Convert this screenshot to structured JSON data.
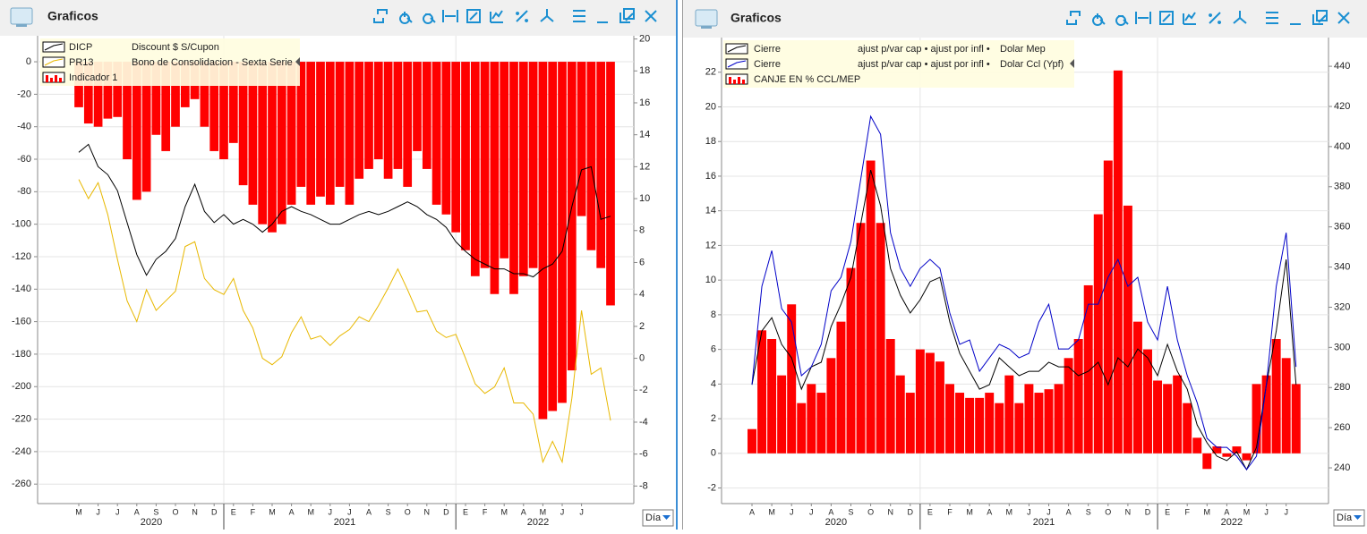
{
  "windows": [
    {
      "title": "Graficos",
      "period": "Día"
    },
    {
      "title": "Graficos",
      "period": "Día"
    }
  ],
  "chart_data": [
    {
      "type": "bar_line",
      "ylim": [
        -272,
        16
      ],
      "y2lim": [
        -9.1,
        20.2
      ],
      "yticks": [
        0,
        -20,
        -40,
        -60,
        -80,
        -100,
        -120,
        -140,
        -160,
        -180,
        -200,
        -220,
        -240,
        -260
      ],
      "y2ticks": [
        -8,
        -6,
        -4,
        -2,
        0,
        2,
        4,
        6,
        8,
        10,
        12,
        14,
        16,
        18,
        20
      ],
      "grid": true,
      "categories": [
        "M",
        null,
        "J",
        null,
        "J",
        null,
        "A",
        null,
        "S",
        null,
        "O",
        null,
        "N",
        null,
        "D",
        null,
        "E",
        null,
        "F",
        null,
        "M",
        null,
        "A",
        null,
        "M",
        null,
        "J",
        null,
        "J",
        null,
        "A",
        null,
        "S",
        null,
        "O",
        null,
        "N",
        null,
        "D",
        null,
        "E",
        null,
        "F",
        null,
        "M",
        null,
        "A",
        null,
        "M",
        null,
        "J",
        null,
        "J",
        null,
        null,
        null
      ],
      "years": [
        "2020",
        "2021",
        "2022"
      ],
      "series": [
        {
          "name": "DICP",
          "description": "Discount $ S/Cupon",
          "type": "line",
          "axis": "y2",
          "color": "#000000",
          "values": [
            12.9,
            13.4,
            12.0,
            11.5,
            10.5,
            8.5,
            6.5,
            5.2,
            6.2,
            6.7,
            7.5,
            9.5,
            10.9,
            9.2,
            8.5,
            9.0,
            8.4,
            8.7,
            8.4,
            7.9,
            8.4,
            9.2,
            9.5,
            9.2,
            9.0,
            8.7,
            8.4,
            8.4,
            8.7,
            9.0,
            9.2,
            9.0,
            9.2,
            9.5,
            9.8,
            9.5,
            9.0,
            8.7,
            8.2,
            7.3,
            6.7,
            6.2,
            5.9,
            5.6,
            5.6,
            5.3,
            5.3,
            5.1,
            5.6,
            5.9,
            6.7,
            9.5,
            11.8,
            12.0,
            8.7,
            8.9
          ]
        },
        {
          "name": "PR13",
          "description": "Bono de Consolidacion - Sexta Serie",
          "type": "line",
          "axis": "y2",
          "color": "#e8b800",
          "values": [
            11.2,
            10.0,
            11.0,
            9.0,
            6.2,
            3.6,
            2.3,
            4.3,
            3.0,
            3.6,
            4.2,
            7.0,
            7.3,
            5.0,
            4.3,
            4.0,
            5.0,
            3.0,
            1.9,
            0.0,
            -0.4,
            0.1,
            1.6,
            2.6,
            1.2,
            1.4,
            0.8,
            1.4,
            1.8,
            2.6,
            2.3,
            3.3,
            4.4,
            5.6,
            4.3,
            2.9,
            3.0,
            1.7,
            1.3,
            1.5,
            0.0,
            -1.6,
            -2.2,
            -1.8,
            -0.6,
            -2.8,
            -2.8,
            -3.5,
            -6.5,
            -5.2,
            -6.5,
            -2.5,
            3.0,
            -1.0,
            -0.6,
            -3.9
          ]
        },
        {
          "name": "Indicador 1",
          "type": "bar",
          "color": "#ff0000",
          "values": [
            -28,
            -38,
            -40,
            -35,
            -34,
            -60,
            -85,
            -80,
            -45,
            -55,
            -40,
            -28,
            -23,
            -40,
            -55,
            -60,
            -50,
            -76,
            -88,
            -100,
            -105,
            -100,
            -88,
            -77,
            -88,
            -83,
            -88,
            -77,
            -88,
            -72,
            -66,
            -60,
            -72,
            -66,
            -77,
            -55,
            -66,
            -88,
            -94,
            -105,
            -116,
            -132,
            -127,
            -143,
            -121,
            -143,
            -132,
            -127,
            -220,
            -215,
            -210,
            -190,
            -95,
            -116,
            -127,
            -150
          ]
        }
      ]
    },
    {
      "type": "bar_line",
      "ylim": [
        -2.9,
        24.0
      ],
      "y2lim": [
        222.2,
        454.3
      ],
      "yticks": [
        -2,
        0,
        2,
        4,
        6,
        8,
        10,
        12,
        14,
        16,
        18,
        20,
        22
      ],
      "y2ticks": [
        240,
        260,
        280,
        300,
        320,
        340,
        360,
        380,
        400,
        420,
        440
      ],
      "grid": true,
      "categories": [
        "A",
        null,
        "M",
        null,
        "J",
        null,
        "J",
        null,
        "A",
        null,
        "S",
        null,
        "O",
        null,
        "N",
        null,
        "D",
        null,
        "E",
        null,
        "F",
        null,
        "M",
        null,
        "A",
        null,
        "M",
        null,
        "J",
        null,
        "J",
        null,
        "A",
        null,
        "S",
        null,
        "O",
        null,
        "N",
        null,
        "D",
        null,
        "E",
        null,
        "F",
        null,
        "M",
        null,
        "A",
        null,
        "M",
        null,
        "J",
        null,
        "J",
        null
      ],
      "years": [
        "2020",
        "2021",
        "2022"
      ],
      "series": [
        {
          "name": "Cierre",
          "adjustments": "ajust p/var cap • ajust por infl •",
          "instrument": "Dolar Mep",
          "type": "line",
          "axis": "y2",
          "color": "#000000",
          "values": [
            281.4,
            308.2,
            314.8,
            301.5,
            294.8,
            279.2,
            290.3,
            292.6,
            310.4,
            321.5,
            334.9,
            361.6,
            388.3,
            370.5,
            339.3,
            326.0,
            317.1,
            323.7,
            332.7,
            334.9,
            312.6,
            297.0,
            288.1,
            279.2,
            281.4,
            294.8,
            290.3,
            285.9,
            288.1,
            288.1,
            292.6,
            290.3,
            290.3,
            285.9,
            288.1,
            292.6,
            281.4,
            294.8,
            290.3,
            299.2,
            294.8,
            285.9,
            301.5,
            288.1,
            279.2,
            261.4,
            252.5,
            245.8,
            243.6,
            248.0,
            239.1,
            250.2,
            281.4,
            308.2,
            343.8,
            281.4
          ]
        },
        {
          "name": "Cierre",
          "adjustments": "ajust p/var cap • ajust por infl •",
          "instrument": "Dolar Ccl (Ypf)",
          "type": "line",
          "axis": "y2",
          "color": "#0000c8",
          "values": [
            281.4,
            330.4,
            348.2,
            319.3,
            312.6,
            285.9,
            290.3,
            301.5,
            328.2,
            334.9,
            352.7,
            383.9,
            415.1,
            406.1,
            357.1,
            339.3,
            330.4,
            339.3,
            343.8,
            339.3,
            317.1,
            301.5,
            303.7,
            288.1,
            294.8,
            301.5,
            299.2,
            294.8,
            297.0,
            312.6,
            321.5,
            299.2,
            299.2,
            303.7,
            321.5,
            321.5,
            334.9,
            343.8,
            330.4,
            334.9,
            312.6,
            303.7,
            330.4,
            303.7,
            285.9,
            272.5,
            254.7,
            250.2,
            250.2,
            245.8,
            239.1,
            245.8,
            281.4,
            330.4,
            357.1,
            290.3
          ]
        },
        {
          "name": "CANJE EN % CCL/MEP",
          "type": "bar",
          "color": "#ff0000",
          "values": [
            1.4,
            7.1,
            6.6,
            4.5,
            8.6,
            2.9,
            4.0,
            3.5,
            5.5,
            7.6,
            10.7,
            13.3,
            16.9,
            13.3,
            6.6,
            4.5,
            3.5,
            6.0,
            5.8,
            5.3,
            4.0,
            3.5,
            3.2,
            3.2,
            3.5,
            2.9,
            4.5,
            2.9,
            4.0,
            3.5,
            3.7,
            4.0,
            5.5,
            6.6,
            9.7,
            13.8,
            16.9,
            22.1,
            14.3,
            7.6,
            6.0,
            4.2,
            4.0,
            4.5,
            2.9,
            0.9,
            -0.9,
            0.4,
            -0.2,
            0.4,
            -0.4,
            4.0,
            4.5,
            6.6,
            5.5,
            4.0
          ]
        }
      ]
    }
  ]
}
